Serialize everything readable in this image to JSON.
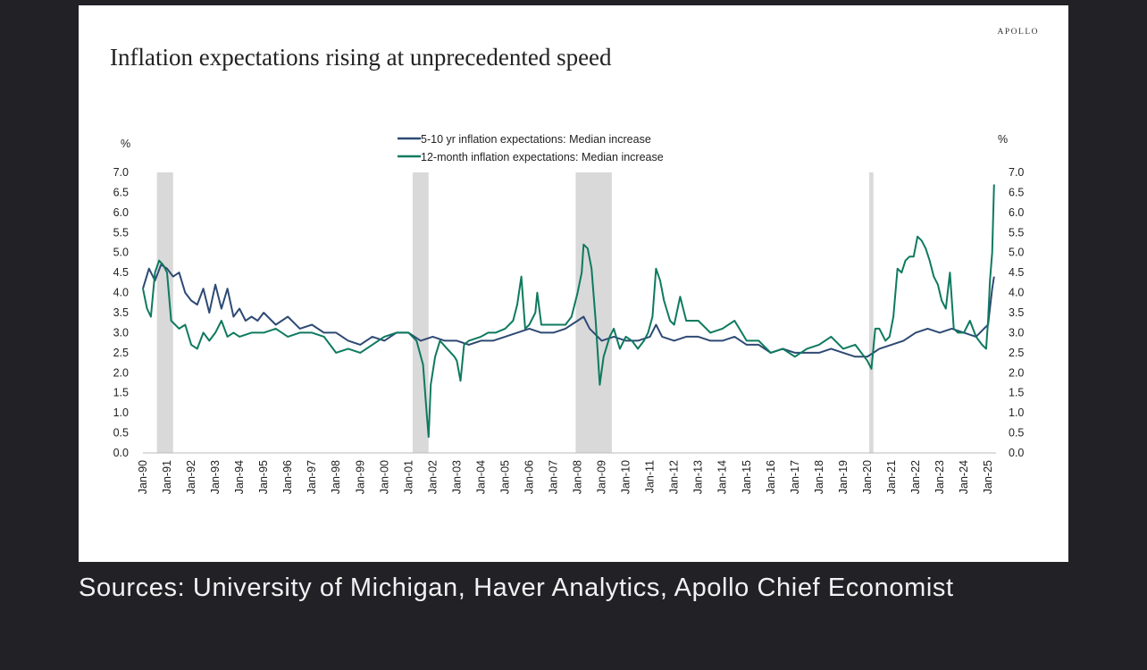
{
  "brand": "APOLLO",
  "title": "Inflation expectations rising at unprecedented speed",
  "source_note": "Sources: University of Michigan, Haver Analytics, Apollo Chief Economist",
  "chart_data": {
    "type": "line",
    "ylabel_left": "%",
    "ylabel_right": "%",
    "ylim": [
      0,
      7
    ],
    "yticks": [
      "0.0",
      "0.5",
      "1.0",
      "1.5",
      "2.0",
      "2.5",
      "3.0",
      "3.5",
      "4.0",
      "4.5",
      "5.0",
      "5.5",
      "6.0",
      "6.5",
      "7.0"
    ],
    "xrange": [
      1990.0,
      2025.33
    ],
    "xtick_labels": [
      "Jan-90",
      "Jan-91",
      "Jan-92",
      "Jan-93",
      "Jan-94",
      "Jan-95",
      "Jan-96",
      "Jan-97",
      "Jan-98",
      "Jan-99",
      "Jan-00",
      "Jan-01",
      "Jan-02",
      "Jan-03",
      "Jan-04",
      "Jan-05",
      "Jan-06",
      "Jan-07",
      "Jan-08",
      "Jan-09",
      "Jan-10",
      "Jan-11",
      "Jan-12",
      "Jan-13",
      "Jan-14",
      "Jan-15",
      "Jan-16",
      "Jan-17",
      "Jan-18",
      "Jan-19",
      "Jan-20",
      "Jan-21",
      "Jan-22",
      "Jan-23",
      "Jan-24",
      "Jan-25"
    ],
    "recessions": [
      [
        1990.58,
        1991.25
      ],
      [
        2001.17,
        2001.83
      ],
      [
        2007.92,
        2009.42
      ],
      [
        2020.08,
        2020.25
      ]
    ],
    "legend_position": "top-center",
    "series": [
      {
        "name": "5-10 yr inflation expectations: Median increase",
        "color": "#2e4a74",
        "points": [
          [
            1990.0,
            4.1
          ],
          [
            1990.25,
            4.6
          ],
          [
            1990.5,
            4.3
          ],
          [
            1990.75,
            4.7
          ],
          [
            1991.0,
            4.6
          ],
          [
            1991.25,
            4.4
          ],
          [
            1991.5,
            4.5
          ],
          [
            1991.75,
            4.0
          ],
          [
            1992.0,
            3.8
          ],
          [
            1992.25,
            3.7
          ],
          [
            1992.5,
            4.1
          ],
          [
            1992.75,
            3.5
          ],
          [
            1993.0,
            4.2
          ],
          [
            1993.25,
            3.6
          ],
          [
            1993.5,
            4.1
          ],
          [
            1993.75,
            3.4
          ],
          [
            1994.0,
            3.6
          ],
          [
            1994.25,
            3.3
          ],
          [
            1994.5,
            3.4
          ],
          [
            1994.75,
            3.3
          ],
          [
            1995.0,
            3.5
          ],
          [
            1995.5,
            3.2
          ],
          [
            1996.0,
            3.4
          ],
          [
            1996.5,
            3.1
          ],
          [
            1997.0,
            3.2
          ],
          [
            1997.5,
            3.0
          ],
          [
            1998.0,
            3.0
          ],
          [
            1998.5,
            2.8
          ],
          [
            1999.0,
            2.7
          ],
          [
            1999.5,
            2.9
          ],
          [
            2000.0,
            2.8
          ],
          [
            2000.5,
            3.0
          ],
          [
            2001.0,
            3.0
          ],
          [
            2001.5,
            2.8
          ],
          [
            2002.0,
            2.9
          ],
          [
            2002.5,
            2.8
          ],
          [
            2003.0,
            2.8
          ],
          [
            2003.5,
            2.7
          ],
          [
            2004.0,
            2.8
          ],
          [
            2004.5,
            2.8
          ],
          [
            2005.0,
            2.9
          ],
          [
            2005.5,
            3.0
          ],
          [
            2006.0,
            3.1
          ],
          [
            2006.5,
            3.0
          ],
          [
            2007.0,
            3.0
          ],
          [
            2007.5,
            3.1
          ],
          [
            2008.0,
            3.3
          ],
          [
            2008.25,
            3.4
          ],
          [
            2008.5,
            3.1
          ],
          [
            2009.0,
            2.8
          ],
          [
            2009.5,
            2.9
          ],
          [
            2010.0,
            2.8
          ],
          [
            2010.5,
            2.8
          ],
          [
            2011.0,
            2.9
          ],
          [
            2011.25,
            3.2
          ],
          [
            2011.5,
            2.9
          ],
          [
            2012.0,
            2.8
          ],
          [
            2012.5,
            2.9
          ],
          [
            2013.0,
            2.9
          ],
          [
            2013.5,
            2.8
          ],
          [
            2014.0,
            2.8
          ],
          [
            2014.5,
            2.9
          ],
          [
            2015.0,
            2.7
          ],
          [
            2015.5,
            2.7
          ],
          [
            2016.0,
            2.5
          ],
          [
            2016.5,
            2.6
          ],
          [
            2017.0,
            2.5
          ],
          [
            2017.5,
            2.5
          ],
          [
            2018.0,
            2.5
          ],
          [
            2018.5,
            2.6
          ],
          [
            2019.0,
            2.5
          ],
          [
            2019.5,
            2.4
          ],
          [
            2020.0,
            2.4
          ],
          [
            2020.25,
            2.5
          ],
          [
            2020.5,
            2.6
          ],
          [
            2021.0,
            2.7
          ],
          [
            2021.5,
            2.8
          ],
          [
            2022.0,
            3.0
          ],
          [
            2022.5,
            3.1
          ],
          [
            2023.0,
            3.0
          ],
          [
            2023.5,
            3.1
          ],
          [
            2024.0,
            3.0
          ],
          [
            2024.5,
            2.9
          ],
          [
            2024.83,
            3.1
          ],
          [
            2025.0,
            3.2
          ],
          [
            2025.17,
            4.1
          ],
          [
            2025.25,
            4.4
          ]
        ]
      },
      {
        "name": "12-month inflation expectations: Median increase",
        "color": "#0e7a5f",
        "points": [
          [
            1990.0,
            4.1
          ],
          [
            1990.17,
            3.6
          ],
          [
            1990.33,
            3.4
          ],
          [
            1990.5,
            4.5
          ],
          [
            1990.67,
            4.8
          ],
          [
            1990.83,
            4.7
          ],
          [
            1991.0,
            4.5
          ],
          [
            1991.17,
            3.3
          ],
          [
            1991.5,
            3.1
          ],
          [
            1991.75,
            3.2
          ],
          [
            1992.0,
            2.7
          ],
          [
            1992.25,
            2.6
          ],
          [
            1992.5,
            3.0
          ],
          [
            1992.75,
            2.8
          ],
          [
            1993.0,
            3.0
          ],
          [
            1993.25,
            3.3
          ],
          [
            1993.5,
            2.9
          ],
          [
            1993.75,
            3.0
          ],
          [
            1994.0,
            2.9
          ],
          [
            1994.5,
            3.0
          ],
          [
            1995.0,
            3.0
          ],
          [
            1995.5,
            3.1
          ],
          [
            1996.0,
            2.9
          ],
          [
            1996.5,
            3.0
          ],
          [
            1997.0,
            3.0
          ],
          [
            1997.5,
            2.9
          ],
          [
            1998.0,
            2.5
          ],
          [
            1998.5,
            2.6
          ],
          [
            1999.0,
            2.5
          ],
          [
            1999.5,
            2.7
          ],
          [
            2000.0,
            2.9
          ],
          [
            2000.5,
            3.0
          ],
          [
            2001.0,
            3.0
          ],
          [
            2001.33,
            2.8
          ],
          [
            2001.6,
            2.2
          ],
          [
            2001.75,
            1.0
          ],
          [
            2001.83,
            0.4
          ],
          [
            2001.92,
            1.7
          ],
          [
            2002.1,
            2.4
          ],
          [
            2002.3,
            2.8
          ],
          [
            2002.6,
            2.6
          ],
          [
            2002.9,
            2.4
          ],
          [
            2003.0,
            2.3
          ],
          [
            2003.15,
            1.8
          ],
          [
            2003.3,
            2.7
          ],
          [
            2003.5,
            2.8
          ],
          [
            2004.0,
            2.9
          ],
          [
            2004.3,
            3.0
          ],
          [
            2004.6,
            3.0
          ],
          [
            2005.0,
            3.1
          ],
          [
            2005.33,
            3.3
          ],
          [
            2005.5,
            3.7
          ],
          [
            2005.67,
            4.4
          ],
          [
            2005.83,
            3.1
          ],
          [
            2006.0,
            3.2
          ],
          [
            2006.25,
            3.5
          ],
          [
            2006.33,
            4.0
          ],
          [
            2006.5,
            3.2
          ],
          [
            2007.0,
            3.2
          ],
          [
            2007.5,
            3.2
          ],
          [
            2007.75,
            3.4
          ],
          [
            2008.0,
            4.0
          ],
          [
            2008.17,
            4.5
          ],
          [
            2008.25,
            5.2
          ],
          [
            2008.42,
            5.1
          ],
          [
            2008.58,
            4.6
          ],
          [
            2008.75,
            3.3
          ],
          [
            2008.92,
            1.7
          ],
          [
            2009.08,
            2.4
          ],
          [
            2009.33,
            2.9
          ],
          [
            2009.5,
            3.1
          ],
          [
            2009.75,
            2.6
          ],
          [
            2010.0,
            2.9
          ],
          [
            2010.25,
            2.8
          ],
          [
            2010.5,
            2.6
          ],
          [
            2010.75,
            2.8
          ],
          [
            2010.92,
            3.0
          ],
          [
            2011.1,
            3.4
          ],
          [
            2011.25,
            4.6
          ],
          [
            2011.42,
            4.3
          ],
          [
            2011.58,
            3.8
          ],
          [
            2011.83,
            3.3
          ],
          [
            2012.0,
            3.2
          ],
          [
            2012.25,
            3.9
          ],
          [
            2012.5,
            3.3
          ],
          [
            2012.75,
            3.3
          ],
          [
            2013.0,
            3.3
          ],
          [
            2013.5,
            3.0
          ],
          [
            2014.0,
            3.1
          ],
          [
            2014.5,
            3.3
          ],
          [
            2015.0,
            2.8
          ],
          [
            2015.5,
            2.8
          ],
          [
            2016.0,
            2.5
          ],
          [
            2016.5,
            2.6
          ],
          [
            2017.0,
            2.4
          ],
          [
            2017.5,
            2.6
          ],
          [
            2018.0,
            2.7
          ],
          [
            2018.5,
            2.9
          ],
          [
            2019.0,
            2.6
          ],
          [
            2019.5,
            2.7
          ],
          [
            2020.0,
            2.3
          ],
          [
            2020.17,
            2.1
          ],
          [
            2020.33,
            3.1
          ],
          [
            2020.5,
            3.1
          ],
          [
            2020.75,
            2.8
          ],
          [
            2020.92,
            2.9
          ],
          [
            2021.08,
            3.4
          ],
          [
            2021.25,
            4.6
          ],
          [
            2021.42,
            4.5
          ],
          [
            2021.58,
            4.8
          ],
          [
            2021.75,
            4.9
          ],
          [
            2021.92,
            4.9
          ],
          [
            2022.08,
            5.4
          ],
          [
            2022.25,
            5.3
          ],
          [
            2022.42,
            5.1
          ],
          [
            2022.58,
            4.8
          ],
          [
            2022.75,
            4.4
          ],
          [
            2022.92,
            4.2
          ],
          [
            2023.08,
            3.8
          ],
          [
            2023.25,
            3.6
          ],
          [
            2023.42,
            4.5
          ],
          [
            2023.58,
            3.1
          ],
          [
            2023.75,
            3.0
          ],
          [
            2024.0,
            3.0
          ],
          [
            2024.25,
            3.3
          ],
          [
            2024.5,
            2.9
          ],
          [
            2024.75,
            2.7
          ],
          [
            2024.92,
            2.6
          ],
          [
            2025.0,
            3.3
          ],
          [
            2025.08,
            4.3
          ],
          [
            2025.17,
            5.0
          ],
          [
            2025.25,
            6.7
          ]
        ]
      }
    ]
  }
}
